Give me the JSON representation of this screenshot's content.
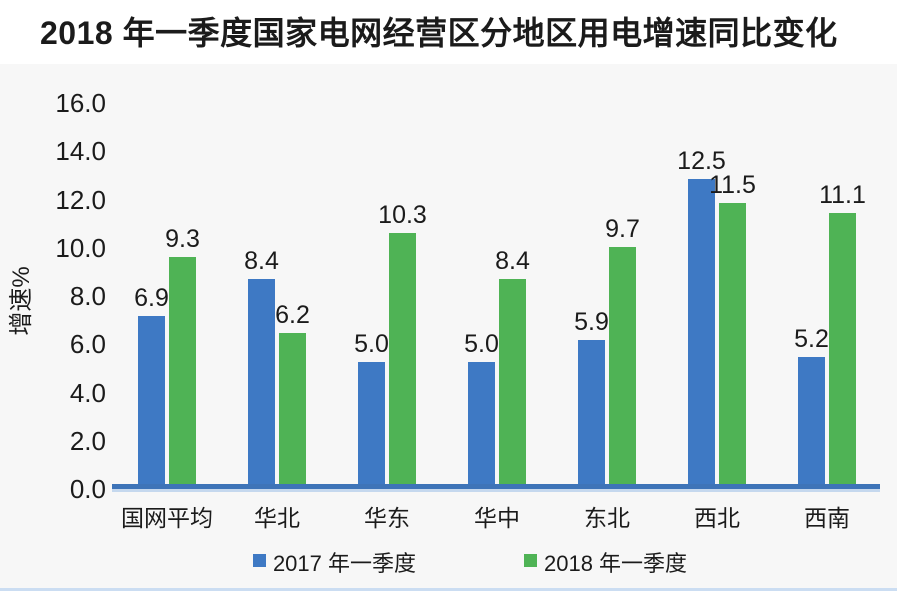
{
  "title": "2018 年一季度国家电网经营区分地区用电增速同比变化",
  "chart_data": {
    "type": "bar",
    "title": "2018 年一季度国家电网经营区分地区用电增速同比变化",
    "xlabel": "",
    "ylabel": "增速%",
    "ylim": [
      0,
      16
    ],
    "ytick_step": 2,
    "yticks": [
      "0.0",
      "2.0",
      "4.0",
      "6.0",
      "8.0",
      "10.0",
      "12.0",
      "14.0",
      "16.0"
    ],
    "categories": [
      "国网平均",
      "华北",
      "华东",
      "华中",
      "东北",
      "西北",
      "西南"
    ],
    "series": [
      {
        "name": "2017 年一季度",
        "color": "#3e79c4",
        "values": [
          6.9,
          8.4,
          5.0,
          5.0,
          5.9,
          12.5,
          5.2
        ]
      },
      {
        "name": "2018 年一季度",
        "color": "#4fb355",
        "values": [
          9.3,
          6.2,
          10.3,
          8.4,
          9.7,
          11.5,
          11.1
        ]
      }
    ],
    "grid": false,
    "legend_position": "bottom",
    "data_labels": true
  },
  "colors": {
    "page_bg": "#ffffff",
    "panel_bg": "#f7f7f7",
    "axis_line": "#3e74b8",
    "axis_subline": "#c5d8ee",
    "bottom_line": "#cbddf2",
    "text": "#1b1b1b"
  }
}
